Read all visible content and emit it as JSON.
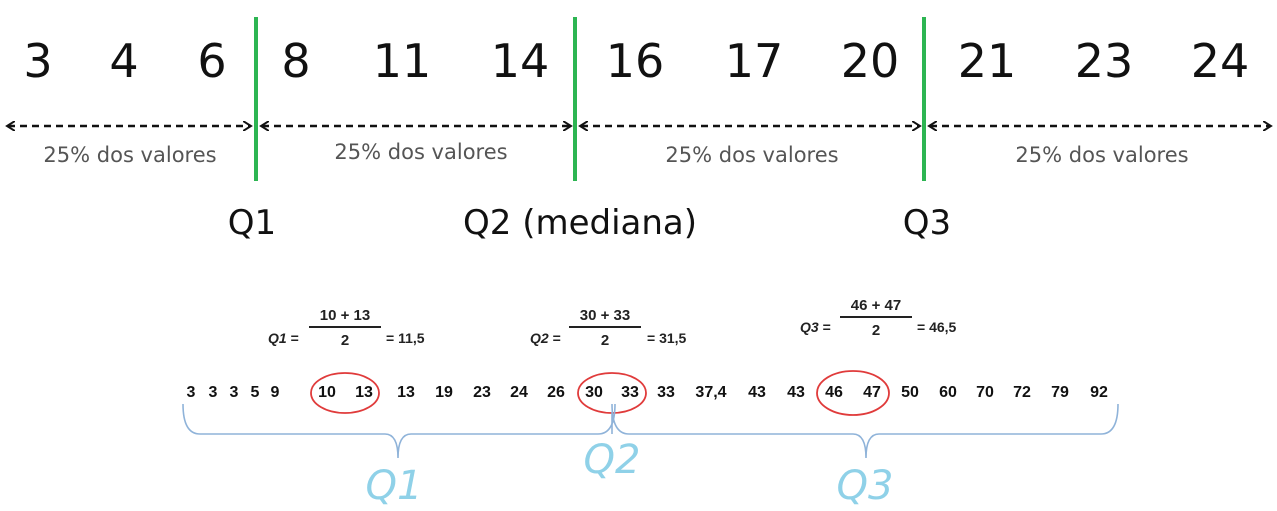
{
  "top": {
    "numbers": [
      "3",
      "4",
      "6",
      "8",
      "11",
      "14",
      "16",
      "17",
      "20",
      "21",
      "23",
      "24"
    ],
    "segment_label": "25% dos valores",
    "quartile_labels": [
      "Q1",
      "Q2 (mediana)",
      "Q3"
    ],
    "divider_color": "#2db552"
  },
  "bottom": {
    "formulas": [
      {
        "var": "Q1",
        "eq": "=",
        "numerator": "10 + 13",
        "denominator": "2",
        "result": "= 11,5"
      },
      {
        "var": "Q2",
        "eq": "=",
        "numerator": "30 + 33",
        "denominator": "2",
        "result": "= 31,5"
      },
      {
        "var": "Q3",
        "eq": "=",
        "numerator": "46 + 47",
        "denominator": "2",
        "result": "= 46,5"
      }
    ],
    "sequence": [
      "3",
      "3",
      "3",
      "5",
      "9",
      "10",
      "13",
      "13",
      "19",
      "23",
      "24",
      "26",
      "30",
      "33",
      "33",
      "37,4",
      "43",
      "43",
      "46",
      "47",
      "50",
      "60",
      "70",
      "72",
      "79",
      "92"
    ],
    "brace_labels": [
      "Q1",
      "Q2",
      "Q3"
    ],
    "circle_color": "#e03b3b",
    "brace_color": "#8fb3d9",
    "brace_label_color": "#8fd1e8"
  }
}
